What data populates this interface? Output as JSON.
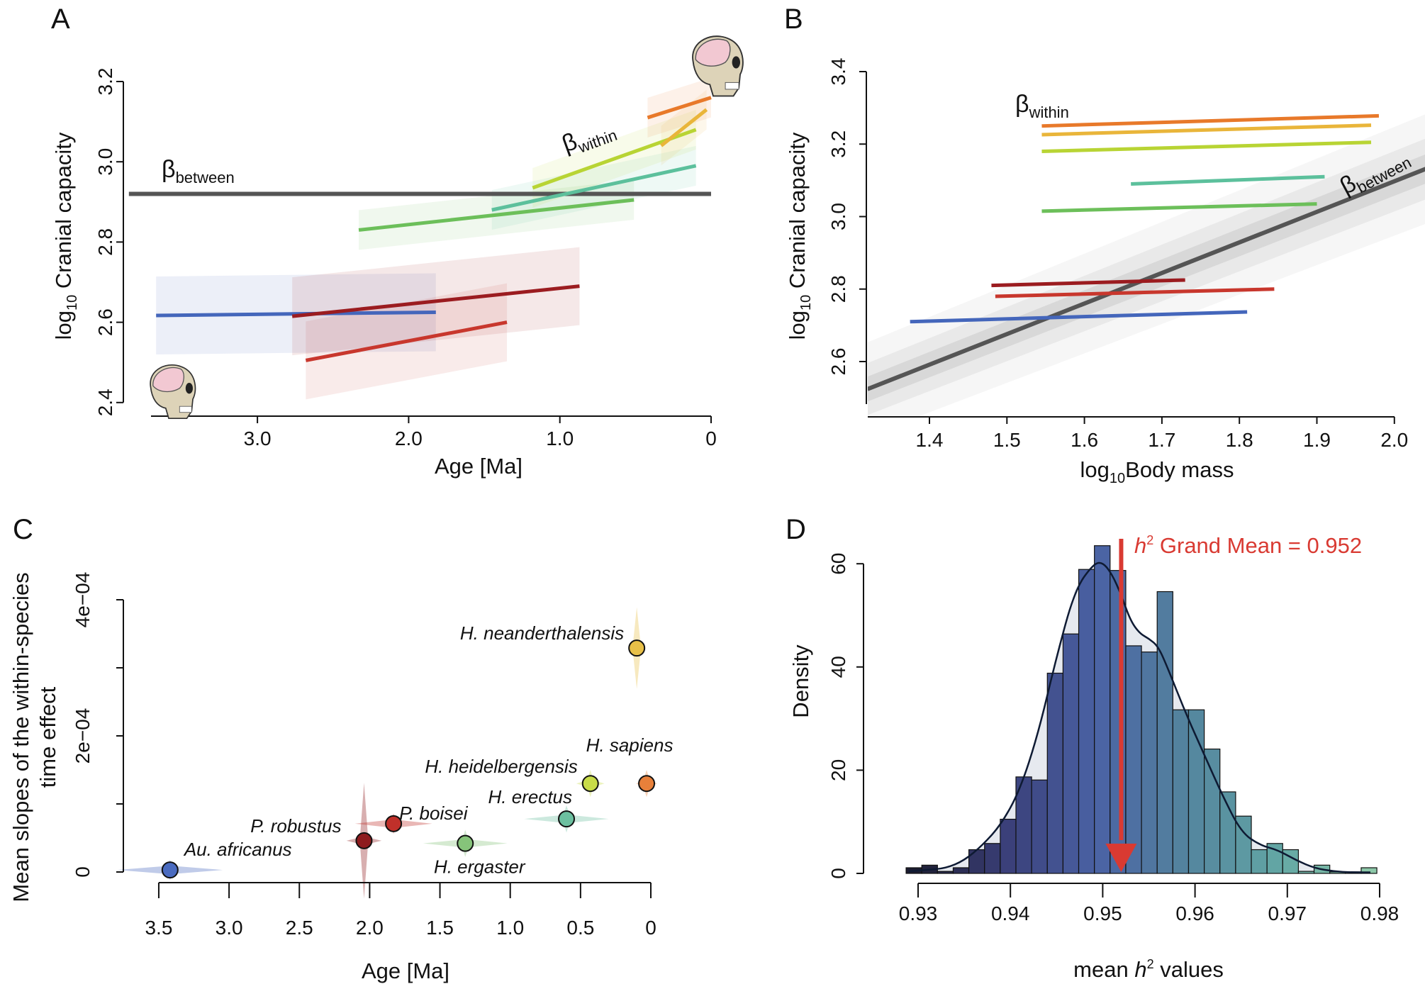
{
  "panels": {
    "a": "A",
    "b": "B",
    "c": "C",
    "d": "D"
  },
  "chart_data": [
    {
      "panel": "A",
      "type": "line",
      "xlabel": "Age [Ma]",
      "ylabel_main": "log",
      "ylabel_sub": "10",
      "ylabel_rest": " Cranial capacity",
      "x_reversed": true,
      "xlim": [
        3.7,
        0
      ],
      "ylim": [
        2.4,
        3.2
      ],
      "xticks": [
        "3.0",
        "2.0",
        "1.0",
        "0"
      ],
      "xtick_values": [
        3,
        2,
        1,
        0
      ],
      "yticks": [
        "2.4",
        "2.6",
        "2.8",
        "3.0",
        "3.2"
      ],
      "ytick_values": [
        2.4,
        2.6,
        2.8,
        3.0,
        3.2
      ],
      "annotations": {
        "between_symbol": "β",
        "between_sub": "between",
        "within_symbol": "β",
        "within_sub": "within"
      },
      "between_line": {
        "y": 2.92,
        "color": "#555555"
      },
      "series": [
        {
          "color": "#4466bb",
          "x": [
            3.67,
            1.82
          ],
          "y": [
            2.617,
            2.625
          ]
        },
        {
          "color": "#9b1c20",
          "x": [
            2.77,
            0.87
          ],
          "y": [
            2.615,
            2.69
          ]
        },
        {
          "color": "#c8372d",
          "x": [
            2.68,
            1.35
          ],
          "y": [
            2.505,
            2.6
          ]
        },
        {
          "color": "#6cbf5a",
          "x": [
            2.33,
            0.51
          ],
          "y": [
            2.83,
            2.905
          ]
        },
        {
          "color": "#5cc09c",
          "x": [
            1.45,
            0.1
          ],
          "y": [
            2.88,
            2.99
          ]
        },
        {
          "color": "#b8d434",
          "x": [
            1.18,
            0.1
          ],
          "y": [
            2.935,
            3.08
          ]
        },
        {
          "color": "#e9b53a",
          "x": [
            0.33,
            0.03
          ],
          "y": [
            3.04,
            3.13
          ]
        },
        {
          "color": "#e8792a",
          "x": [
            0.42,
            0.0
          ],
          "y": [
            3.11,
            3.16
          ]
        }
      ],
      "icons": [
        "ape-skull-icon",
        "human-skull-icon"
      ]
    },
    {
      "panel": "B",
      "type": "line",
      "xlabel_main": "log",
      "xlabel_sub": "10",
      "xlabel_rest": "Body mass",
      "ylabel_main": "log",
      "ylabel_sub": "10",
      "ylabel_rest": " Cranial capacity",
      "xlim": [
        1.32,
        2.0
      ],
      "ylim": [
        2.49,
        3.4
      ],
      "xticks": [
        "1.4",
        "1.5",
        "1.6",
        "1.7",
        "1.8",
        "1.9",
        "2.0"
      ],
      "xtick_values": [
        1.4,
        1.5,
        1.6,
        1.7,
        1.8,
        1.9,
        2.0
      ],
      "yticks": [
        "2.6",
        "2.8",
        "3.0",
        "3.2",
        "3.4"
      ],
      "ytick_values": [
        2.6,
        2.8,
        3.0,
        3.2,
        3.4
      ],
      "annotations": {
        "between_symbol": "β",
        "between_sub": "between",
        "within_symbol": "β",
        "within_sub": "within"
      },
      "between_line": {
        "x": [
          1.32,
          2.06
        ],
        "y": [
          2.524,
          3.148
        ],
        "color": "#555555"
      },
      "series": [
        {
          "color": "#e8792a",
          "x": [
            1.545,
            1.98
          ],
          "y": [
            3.25,
            3.278
          ]
        },
        {
          "color": "#e9b53a",
          "x": [
            1.545,
            1.97
          ],
          "y": [
            3.226,
            3.252
          ]
        },
        {
          "color": "#b8d434",
          "x": [
            1.545,
            1.97
          ],
          "y": [
            3.18,
            3.205
          ]
        },
        {
          "color": "#5cc09c",
          "x": [
            1.66,
            1.91
          ],
          "y": [
            3.09,
            3.11
          ]
        },
        {
          "color": "#6cbf5a",
          "x": [
            1.545,
            1.9
          ],
          "y": [
            3.015,
            3.035
          ]
        },
        {
          "color": "#9b1c20",
          "x": [
            1.48,
            1.73
          ],
          "y": [
            2.81,
            2.825
          ]
        },
        {
          "color": "#c8372d",
          "x": [
            1.485,
            1.845
          ],
          "y": [
            2.78,
            2.8
          ]
        },
        {
          "color": "#4466bb",
          "x": [
            1.375,
            1.81
          ],
          "y": [
            2.71,
            2.737
          ]
        }
      ]
    },
    {
      "panel": "C",
      "type": "scatter",
      "xlabel": "Age [Ma]",
      "ylabel_line1": "Mean slopes of the within-species",
      "ylabel_line2": "time effect",
      "x_reversed": true,
      "xlim": [
        3.5,
        0
      ],
      "ylim": [
        0,
        0.0004
      ],
      "xticks": [
        "3.5",
        "3.0",
        "2.5",
        "2.0",
        "1.5",
        "1.0",
        "0.5",
        "0"
      ],
      "xtick_values": [
        3.5,
        3.0,
        2.5,
        2.0,
        1.5,
        1.0,
        0.5,
        0
      ],
      "yticks": [
        "0",
        "2e−04",
        "4e−04"
      ],
      "ytick_values": [
        0,
        0.0002,
        0.0004
      ],
      "yminor_values": [
        0.0001,
        0.0003
      ],
      "points": [
        {
          "label": "Au. africanus",
          "x": 3.42,
          "y": 3e-06,
          "color": "#4a6bc0",
          "xspread": 0.75,
          "yspread": 3e-05
        },
        {
          "label": "P. robustus",
          "x": 2.04,
          "y": 4.6e-05,
          "color": "#8e1b1e",
          "xspread": 0.25,
          "yspread": 0.00017
        },
        {
          "label": "P. boisei",
          "x": 1.83,
          "y": 7.1e-05,
          "color": "#c0302a",
          "xspread": 0.55,
          "yspread": 3e-05
        },
        {
          "label": "H. ergaster",
          "x": 1.32,
          "y": 4.2e-05,
          "color": "#86c47a",
          "xspread": 0.6,
          "yspread": 4e-05
        },
        {
          "label": "H. erectus",
          "x": 0.6,
          "y": 7.8e-05,
          "color": "#6cc0a0",
          "xspread": 0.6,
          "yspread": 4e-05
        },
        {
          "label": "H. heidelbergensis",
          "x": 0.43,
          "y": 0.00013,
          "color": "#c8dc48",
          "xspread": 0.2,
          "yspread": 4e-05
        },
        {
          "label": "H. sapiens",
          "x": 0.03,
          "y": 0.00013,
          "color": "#e8803a",
          "xspread": 0.15,
          "yspread": 4e-05
        },
        {
          "label": "H. neanderthalensis",
          "x": 0.1,
          "y": 0.000329,
          "color": "#e8c048",
          "xspread": 0.1,
          "yspread": 0.00012
        }
      ]
    },
    {
      "panel": "D",
      "type": "bar",
      "subtype": "histogram",
      "xlabel_pre": "mean ",
      "xlabel_h": "h",
      "xlabel_sup": "2",
      "xlabel_post": " values",
      "ylabel": "Density",
      "xlim": [
        0.928,
        0.98
      ],
      "ylim": [
        0,
        60
      ],
      "xticks": [
        "0.93",
        "0.94",
        "0.95",
        "0.96",
        "0.97",
        "0.98"
      ],
      "xtick_values": [
        0.93,
        0.94,
        0.95,
        0.96,
        0.97,
        0.98
      ],
      "yticks": [
        "0",
        "20",
        "40",
        "60"
      ],
      "ytick_values": [
        0,
        20,
        40,
        60
      ],
      "bin_start": 0.9287,
      "bin_width": 0.0017,
      "values": [
        1.1,
        1.6,
        0.4,
        1.1,
        4.6,
        5.8,
        10.5,
        18.7,
        18.1,
        38.8,
        46.4,
        58.9,
        63.5,
        58.7,
        44.1,
        42.9,
        54.6,
        31.7,
        31.7,
        24.1,
        15.8,
        11.1,
        4.6,
        5.8,
        4.6,
        0.4,
        1.6,
        0.3,
        0.3,
        1.1
      ],
      "color_ramp": [
        "#1c1c30",
        "#3a3f78",
        "#4a62a4",
        "#54849e",
        "#62a6a4",
        "#8cc8a8"
      ],
      "density_curve": {
        "x": [
          0.929,
          0.931,
          0.933,
          0.935,
          0.937,
          0.939,
          0.941,
          0.943,
          0.945,
          0.947,
          0.949,
          0.95,
          0.951,
          0.952,
          0.953,
          0.954,
          0.955,
          0.956,
          0.957,
          0.959,
          0.961,
          0.963,
          0.965,
          0.967,
          0.969,
          0.971,
          0.973,
          0.975,
          0.977,
          0.979
        ],
        "y": [
          0.4,
          0.7,
          1.0,
          2.5,
          5.5,
          9.5,
          16,
          27,
          42,
          55,
          60,
          60.3,
          58,
          54,
          49,
          46.5,
          45.5,
          44,
          40,
          31,
          23,
          15,
          8,
          5.5,
          4.5,
          2.5,
          1.0,
          0.4,
          0.2,
          0.2
        ],
        "color": "#0e1a33"
      },
      "mean_marker": {
        "value": 0.952,
        "color": "#d93a32",
        "label_h": "h",
        "label_sup": "2",
        "label_rest": " Grand Mean = 0.952"
      }
    }
  ]
}
